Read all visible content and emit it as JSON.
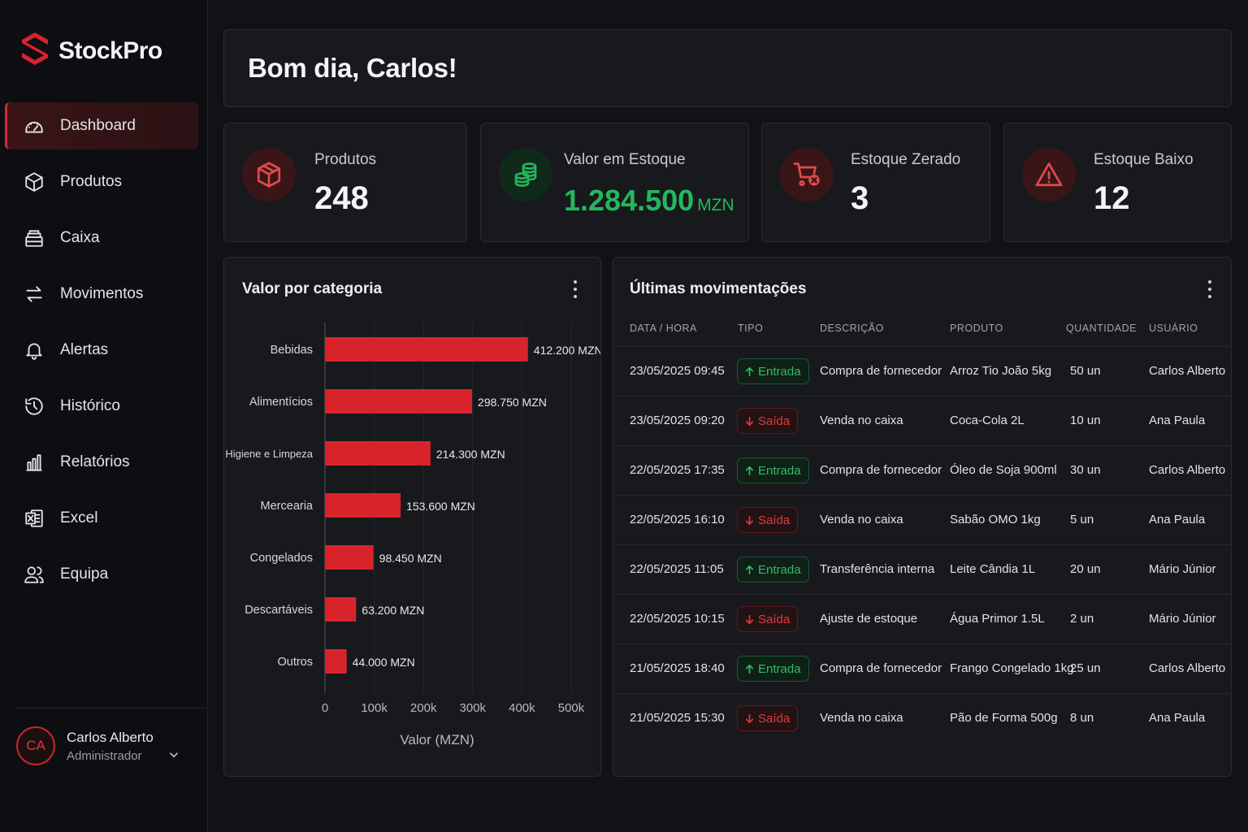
{
  "app": {
    "name": "StockPro"
  },
  "sidebar": {
    "items": [
      {
        "label": "Dashboard",
        "icon": "dashboard-icon",
        "active": true
      },
      {
        "label": "Produtos",
        "icon": "box-icon"
      },
      {
        "label": "Caixa",
        "icon": "cash-register-icon"
      },
      {
        "label": "Movimentos",
        "icon": "transfer-arrows-icon"
      },
      {
        "label": "Alertas",
        "icon": "bell-icon"
      },
      {
        "label": "Histórico",
        "icon": "history-icon"
      },
      {
        "label": "Relatórios",
        "icon": "bar-chart-icon"
      },
      {
        "label": "Excel",
        "icon": "excel-icon"
      },
      {
        "label": "Equipa",
        "icon": "team-icon"
      }
    ],
    "user": {
      "initials": "CA",
      "name": "Carlos Alberto",
      "role": "Administrador"
    }
  },
  "greeting": "Bom dia, Carlos!",
  "stats": {
    "products": {
      "label": "Produtos",
      "value": "248",
      "icon": "box-icon"
    },
    "stock_value": {
      "label": "Valor em Estoque",
      "value": "1.284.500",
      "unit": "MZN",
      "icon": "coins-icon"
    },
    "zero_stock": {
      "label": "Estoque Zerado",
      "value": "3",
      "icon": "cart-x-icon"
    },
    "low_stock": {
      "label": "Estoque Baixo",
      "value": "12",
      "icon": "warning-icon"
    }
  },
  "colors": {
    "accent": "#d62a31",
    "bar": "#d9232b",
    "success": "#22b95d",
    "danger": "#e2393f"
  },
  "chart_data": {
    "type": "bar",
    "orientation": "horizontal",
    "title": "Valor por categoria",
    "categories": [
      "Bebidas",
      "Alimentícios",
      "Higiene e Limpeza",
      "Mercearia",
      "Congelados",
      "Descartáveis",
      "Outros"
    ],
    "values": [
      412200,
      298750,
      214300,
      153600,
      98450,
      63200,
      44000
    ],
    "data_labels": [
      "412.200 MZN",
      "298.750 MZN",
      "214.300 MZN",
      "153.600 MZN",
      "98.450 MZN",
      "63.200 MZN",
      "44.000 MZN"
    ],
    "xlabel": "Valor (MZN)",
    "ylabel": "",
    "xlim": [
      0,
      500000
    ],
    "xticks": [
      0,
      100000,
      200000,
      300000,
      400000,
      500000
    ],
    "xtick_labels": [
      "0",
      "100k",
      "200k",
      "300k",
      "400k",
      "500k"
    ],
    "grid": "vertical"
  },
  "movements": {
    "title": "Últimas movimentações",
    "columns": [
      "DATA / HORA",
      "TIPO",
      "DESCRIÇÃO",
      "PRODUTO",
      "QUANTIDADE",
      "USUÁRIO"
    ],
    "rows": [
      {
        "datetime": "23/05/2025 09:45",
        "type": "Entrada",
        "kind": "in",
        "description": "Compra de fornecedor",
        "product": "Arroz Tio João 5kg",
        "quantity": "50 un",
        "user": "Carlos Alberto"
      },
      {
        "datetime": "23/05/2025 09:20",
        "type": "Saída",
        "kind": "out",
        "description": "Venda no caixa",
        "product": "Coca-Cola 2L",
        "quantity": "10 un",
        "user": "Ana Paula"
      },
      {
        "datetime": "22/05/2025 17:35",
        "type": "Entrada",
        "kind": "in",
        "description": "Compra de fornecedor",
        "product": "Óleo de Soja 900ml",
        "quantity": "30 un",
        "user": "Carlos Alberto"
      },
      {
        "datetime": "22/05/2025 16:10",
        "type": "Saída",
        "kind": "out",
        "description": "Venda no caixa",
        "product": "Sabão OMO 1kg",
        "quantity": "5 un",
        "user": "Ana Paula"
      },
      {
        "datetime": "22/05/2025 11:05",
        "type": "Entrada",
        "kind": "in",
        "description": "Transferência interna",
        "product": "Leite Cândia 1L",
        "quantity": "20 un",
        "user": "Mário Júnior"
      },
      {
        "datetime": "22/05/2025 10:15",
        "type": "Saída",
        "kind": "out",
        "description": "Ajuste de estoque",
        "product": "Água Primor 1.5L",
        "quantity": "2 un",
        "user": "Mário Júnior"
      },
      {
        "datetime": "21/05/2025 18:40",
        "type": "Entrada",
        "kind": "in",
        "description": "Compra de fornecedor",
        "product": "Frango Congelado 1kg",
        "quantity": "25 un",
        "user": "Carlos Alberto"
      },
      {
        "datetime": "21/05/2025 15:30",
        "type": "Saída",
        "kind": "out",
        "description": "Venda no caixa",
        "product": "Pão de Forma 500g",
        "quantity": "8 un",
        "user": "Ana Paula"
      }
    ]
  }
}
